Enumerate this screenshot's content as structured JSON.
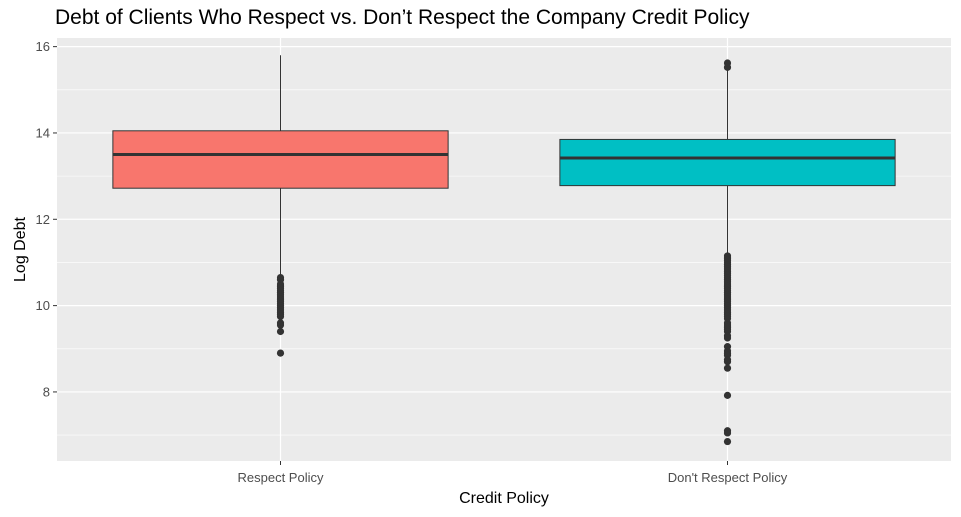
{
  "chart_data": {
    "type": "boxplot",
    "title": "Debt of Clients Who Respect vs. Don’t Respect the Company Credit Policy",
    "xlabel": "Credit Policy",
    "ylabel": "Log Debt",
    "ylim": [
      6.4,
      16.2
    ],
    "yticks": [
      8,
      10,
      12,
      14,
      16
    ],
    "grid": true,
    "legend": "none",
    "categories": [
      "Respect Policy",
      "Don't Respect Policy"
    ],
    "boxes": [
      {
        "category": "Respect Policy",
        "color": "#F8766D",
        "q1": 12.72,
        "median": 13.5,
        "q3": 14.05,
        "whisker_low": 10.7,
        "whisker_high": 15.8,
        "outliers": [
          10.65,
          10.6,
          10.5,
          10.45,
          10.4,
          10.35,
          10.3,
          10.25,
          10.2,
          10.15,
          10.1,
          10.05,
          10.0,
          9.95,
          9.9,
          9.85,
          9.8,
          9.75,
          9.6,
          9.55,
          9.4,
          8.9
        ]
      },
      {
        "category": "Don't Respect Policy",
        "color": "#00BFC4",
        "q1": 12.78,
        "median": 13.42,
        "q3": 13.85,
        "whisker_low": 11.2,
        "whisker_high": 15.48,
        "outliers": [
          15.62,
          15.52,
          11.15,
          11.1,
          11.05,
          11.0,
          10.95,
          10.9,
          10.85,
          10.8,
          10.75,
          10.7,
          10.65,
          10.6,
          10.55,
          10.5,
          10.45,
          10.4,
          10.35,
          10.3,
          10.25,
          10.2,
          10.15,
          10.1,
          10.05,
          10.0,
          9.95,
          9.9,
          9.85,
          9.8,
          9.75,
          9.7,
          9.6,
          9.55,
          9.5,
          9.45,
          9.4,
          9.3,
          9.25,
          9.05,
          8.95,
          8.9,
          8.85,
          8.75,
          8.7,
          8.55,
          7.92,
          7.1,
          7.05,
          6.85
        ]
      }
    ]
  }
}
